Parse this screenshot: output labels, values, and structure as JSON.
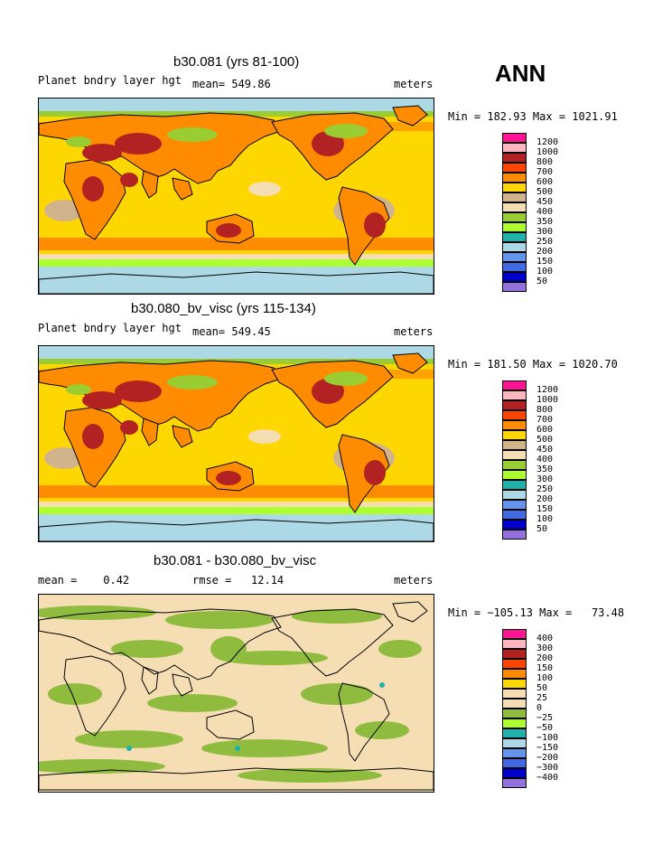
{
  "season": "ANN",
  "units": "meters",
  "panels": [
    {
      "title": "b30.081 (yrs 81-100)",
      "left_label": "Planet bndry layer hgt",
      "stat_label": "mean= 549.86",
      "minmax": "Min = 182.93 Max = 1021.91",
      "levels": [
        "1200",
        "1000",
        "800",
        "700",
        "600",
        "500",
        "450",
        "400",
        "350",
        "300",
        "250",
        "200",
        "150",
        "100",
        "50"
      ],
      "colors": [
        "#ff1493",
        "#ffb6c1",
        "#b22222",
        "#ff4500",
        "#ff8c00",
        "#ffd700",
        "#d2b48c",
        "#f5deb3",
        "#9acd32",
        "#adff2f",
        "#20b2aa",
        "#add8e6",
        "#6495ed",
        "#4169e1",
        "#0000cd",
        "#9370db"
      ]
    },
    {
      "title": "b30.080_bv_visc (yrs 115-134)",
      "left_label": "Planet bndry layer hgt",
      "stat_label": "mean= 549.45",
      "minmax": "Min = 181.50 Max = 1020.70",
      "levels": [
        "1200",
        "1000",
        "800",
        "700",
        "600",
        "500",
        "450",
        "400",
        "350",
        "300",
        "250",
        "200",
        "150",
        "100",
        "50"
      ],
      "colors": [
        "#ff1493",
        "#ffb6c1",
        "#b22222",
        "#ff4500",
        "#ff8c00",
        "#ffd700",
        "#d2b48c",
        "#f5deb3",
        "#9acd32",
        "#adff2f",
        "#20b2aa",
        "#add8e6",
        "#6495ed",
        "#4169e1",
        "#0000cd",
        "#9370db"
      ]
    },
    {
      "title": "b30.081 - b30.080_bv_visc",
      "left_label": "mean =    0.42",
      "stat_label": "rmse =   12.14",
      "minmax": "Min = −105.13 Max =   73.48",
      "levels": [
        "400",
        "300",
        "200",
        "150",
        "100",
        "50",
        "25",
        "0",
        "−25",
        "−50",
        "−100",
        "−150",
        "−200",
        "−300",
        "−400"
      ],
      "colors": [
        "#ff1493",
        "#ffb6c1",
        "#b22222",
        "#ff4500",
        "#ff8c00",
        "#ffd700",
        "#f5deb3",
        "#f5deb3",
        "#8fbc3f",
        "#adff2f",
        "#20b2aa",
        "#add8e6",
        "#6495ed",
        "#4169e1",
        "#0000cd",
        "#9370db"
      ]
    }
  ]
}
